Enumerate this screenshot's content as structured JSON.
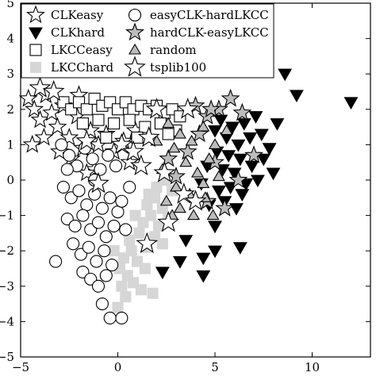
{
  "chart_data": {
    "type": "scatter",
    "title": "",
    "xlabel": "",
    "ylabel": "",
    "xlim": [
      -5,
      13
    ],
    "ylim": [
      -5,
      5
    ],
    "x_ticks": [
      -5,
      0,
      5,
      10
    ],
    "y_ticks": [
      -5,
      -4,
      -3,
      -2,
      -1,
      0,
      1,
      2,
      3,
      4,
      5
    ],
    "x_tick_labels": [
      "−5",
      "0",
      "5",
      "10"
    ],
    "y_tick_labels": [
      "−5",
      "−4",
      "−3",
      "−2",
      "−1",
      "0",
      "1",
      "2",
      "3",
      "4",
      "5"
    ],
    "grid": false,
    "legend_position": "top-left",
    "legend": [
      {
        "label": "CLKeasy",
        "marker": "star-open"
      },
      {
        "label": "CLKhard",
        "marker": "triangle-down-filled"
      },
      {
        "label": "LKCCeasy",
        "marker": "square-open"
      },
      {
        "label": "LKCChard",
        "marker": "square-gray"
      },
      {
        "label": "easyCLK-hardLKCC",
        "marker": "circle-open"
      },
      {
        "label": "hardCLK-easyLKCC",
        "marker": "star-gray"
      },
      {
        "label": "random",
        "marker": "triangle-up-gray"
      },
      {
        "label": "tsplib100",
        "marker": "star-open-large"
      }
    ],
    "series": [
      {
        "name": "CLKeasy",
        "marker": "star-open",
        "stroke": "#000000",
        "fill": "#ffffff",
        "points": [
          [
            -4.6,
            2.3
          ],
          [
            -4.3,
            2.0
          ],
          [
            -4.0,
            1.7
          ],
          [
            -3.7,
            2.4
          ],
          [
            -3.4,
            1.9
          ],
          [
            -3.1,
            1.5
          ],
          [
            -2.8,
            2.1
          ],
          [
            -2.5,
            1.2
          ],
          [
            -2.1,
            1.8
          ],
          [
            -1.8,
            0.9
          ],
          [
            -1.4,
            1.4
          ],
          [
            -1.0,
            1.0
          ],
          [
            -0.6,
            1.3
          ],
          [
            -0.2,
            0.8
          ],
          [
            0.3,
            1.1
          ],
          [
            -3.8,
            1.2
          ],
          [
            -2.4,
            0.6
          ],
          [
            -1.2,
            0.3
          ],
          [
            0.6,
            0.5
          ],
          [
            -4.4,
            1.0
          ],
          [
            -3.0,
            0.8
          ],
          [
            -2.0,
            2.4
          ],
          [
            -1.6,
            0.2
          ],
          [
            0.9,
            1.4
          ]
        ]
      },
      {
        "name": "CLKhard",
        "marker": "triangle-down-filled",
        "stroke": "#000000",
        "fill": "#000000",
        "points": [
          [
            5.0,
            1.4
          ],
          [
            5.3,
            1.7
          ],
          [
            5.6,
            1.2
          ],
          [
            5.9,
            1.5
          ],
          [
            6.2,
            1.0
          ],
          [
            6.5,
            1.6
          ],
          [
            6.8,
            1.2
          ],
          [
            7.1,
            1.8
          ],
          [
            7.4,
            1.3
          ],
          [
            5.1,
            0.8
          ],
          [
            5.4,
            0.3
          ],
          [
            5.7,
            0.7
          ],
          [
            6.0,
            0.2
          ],
          [
            6.3,
            0.6
          ],
          [
            6.6,
            -0.1
          ],
          [
            6.9,
            0.4
          ],
          [
            7.2,
            0.0
          ],
          [
            7.5,
            0.6
          ],
          [
            5.2,
            -0.3
          ],
          [
            5.5,
            -0.6
          ],
          [
            5.8,
            -0.2
          ],
          [
            6.1,
            -0.8
          ],
          [
            6.4,
            -0.4
          ],
          [
            4.6,
            0.4
          ],
          [
            4.3,
            -0.1
          ],
          [
            4.7,
            -0.7
          ],
          [
            5.0,
            -1.3
          ],
          [
            8.6,
            3.0
          ],
          [
            12.0,
            2.2
          ],
          [
            9.2,
            2.4
          ],
          [
            8.2,
            1.6
          ],
          [
            7.8,
            0.9
          ],
          [
            8.0,
            0.2
          ],
          [
            6.3,
            -1.9
          ],
          [
            5.0,
            -2.0
          ],
          [
            4.4,
            -2.2
          ],
          [
            3.5,
            -1.7
          ],
          [
            3.2,
            -2.3
          ],
          [
            2.3,
            -2.6
          ],
          [
            4.4,
            -2.7
          ]
        ]
      },
      {
        "name": "LKCCeasy",
        "marker": "square-open",
        "stroke": "#000000",
        "fill": "#ffffff",
        "points": [
          [
            -2.8,
            2.2
          ],
          [
            -2.4,
            2.0
          ],
          [
            -2.0,
            2.2
          ],
          [
            -1.6,
            2.0
          ],
          [
            -1.2,
            2.3
          ],
          [
            -0.8,
            2.1
          ],
          [
            -0.4,
            2.2
          ],
          [
            0.0,
            2.0
          ],
          [
            0.4,
            2.2
          ],
          [
            0.8,
            2.0
          ],
          [
            1.2,
            2.1
          ],
          [
            1.6,
            2.0
          ],
          [
            2.0,
            2.1
          ],
          [
            2.4,
            1.9
          ],
          [
            2.8,
            2.0
          ],
          [
            3.2,
            1.8
          ],
          [
            -1.8,
            1.6
          ],
          [
            -1.0,
            1.7
          ],
          [
            -0.2,
            1.6
          ],
          [
            0.6,
            1.7
          ],
          [
            1.4,
            1.5
          ],
          [
            2.2,
            1.6
          ],
          [
            3.0,
            1.4
          ],
          [
            -0.6,
            1.2
          ],
          [
            1.0,
            1.2
          ],
          [
            2.6,
            1.3
          ]
        ]
      },
      {
        "name": "LKCChard",
        "marker": "square-gray",
        "stroke": "#d6d6d6",
        "fill": "#d6d6d6",
        "points": [
          [
            0.0,
            -3.6
          ],
          [
            0.2,
            -3.0
          ],
          [
            0.4,
            -3.3
          ],
          [
            0.1,
            -2.5
          ],
          [
            0.5,
            -2.7
          ],
          [
            0.8,
            -2.9
          ],
          [
            1.2,
            -3.1
          ],
          [
            0.3,
            -2.2
          ],
          [
            0.7,
            -2.0
          ],
          [
            1.0,
            -2.3
          ],
          [
            1.4,
            -2.5
          ],
          [
            1.8,
            -3.2
          ],
          [
            0.6,
            -1.7
          ],
          [
            1.1,
            -1.5
          ],
          [
            1.5,
            -1.9
          ],
          [
            1.9,
            -1.6
          ],
          [
            2.3,
            -1.8
          ],
          [
            1.3,
            -1.2
          ],
          [
            1.7,
            -1.0
          ],
          [
            2.1,
            -1.3
          ],
          [
            1.5,
            -0.7
          ],
          [
            1.9,
            -0.5
          ],
          [
            2.3,
            -0.8
          ],
          [
            2.0,
            -0.2
          ],
          [
            2.4,
            0.0
          ],
          [
            2.8,
            -0.3
          ],
          [
            -0.2,
            -2.0
          ],
          [
            0.9,
            -1.0
          ],
          [
            1.6,
            -0.4
          ],
          [
            2.6,
            -1.1
          ]
        ]
      },
      {
        "name": "easyCLK-hardLKCC",
        "marker": "circle-open",
        "stroke": "#000000",
        "fill": "#ffffff",
        "points": [
          [
            -2.9,
            1.0
          ],
          [
            -2.5,
            0.7
          ],
          [
            -2.1,
            0.4
          ],
          [
            -1.7,
            0.9
          ],
          [
            -1.3,
            0.6
          ],
          [
            -0.9,
            0.3
          ],
          [
            -0.5,
            0.7
          ],
          [
            -0.1,
            0.4
          ],
          [
            -2.8,
            -0.2
          ],
          [
            -2.4,
            -0.5
          ],
          [
            -2.0,
            -0.3
          ],
          [
            -1.6,
            -0.7
          ],
          [
            -1.2,
            -0.4
          ],
          [
            -0.8,
            -0.8
          ],
          [
            -0.4,
            -0.5
          ],
          [
            0.0,
            -0.9
          ],
          [
            -2.6,
            -1.1
          ],
          [
            -2.2,
            -1.3
          ],
          [
            -1.8,
            -1.0
          ],
          [
            -1.4,
            -1.4
          ],
          [
            -1.0,
            -1.2
          ],
          [
            -0.6,
            -1.6
          ],
          [
            -0.2,
            -1.3
          ],
          [
            -2.3,
            -1.8
          ],
          [
            -1.9,
            -2.1
          ],
          [
            -1.5,
            -1.9
          ],
          [
            -1.1,
            -2.3
          ],
          [
            -0.7,
            -2.0
          ],
          [
            -0.3,
            -2.4
          ],
          [
            -1.8,
            -2.6
          ],
          [
            -1.4,
            -2.8
          ],
          [
            -1.0,
            -3.0
          ],
          [
            -0.6,
            -2.7
          ],
          [
            -3.2,
            -2.3
          ],
          [
            -0.8,
            -3.5
          ],
          [
            -0.4,
            -3.9
          ],
          [
            0.2,
            -3.9
          ],
          [
            0.4,
            -1.4
          ],
          [
            0.6,
            -0.2
          ],
          [
            -1.2,
            0.0
          ],
          [
            -2.6,
            0.3
          ],
          [
            0.2,
            -0.6
          ]
        ]
      },
      {
        "name": "hardCLK-easyLKCC",
        "marker": "star-gray",
        "stroke": "#000000",
        "fill": "#bdbdbd",
        "points": [
          [
            4.0,
            2.1
          ],
          [
            4.6,
            1.8
          ],
          [
            5.2,
            2.0
          ],
          [
            5.8,
            2.3
          ],
          [
            6.4,
            1.9
          ],
          [
            7.0,
            0.7
          ],
          [
            6.2,
            0.0
          ],
          [
            5.0,
            0.5
          ],
          [
            4.2,
            1.3
          ],
          [
            3.6,
            0.8
          ],
          [
            3.0,
            0.1
          ],
          [
            4.6,
            -0.6
          ],
          [
            5.5,
            -0.8
          ],
          [
            2.6,
            0.6
          ],
          [
            4.8,
            2.0
          ]
        ]
      },
      {
        "name": "random",
        "marker": "triangle-up-gray",
        "stroke": "#000000",
        "fill": "#bdbdbd",
        "points": [
          [
            2.6,
            1.6
          ],
          [
            3.2,
            1.3
          ],
          [
            3.8,
            1.1
          ],
          [
            4.4,
            1.5
          ],
          [
            5.0,
            1.0
          ],
          [
            2.9,
            0.9
          ],
          [
            3.5,
            0.5
          ],
          [
            4.1,
            0.2
          ],
          [
            4.7,
            0.6
          ],
          [
            2.3,
            0.3
          ],
          [
            3.0,
            -0.2
          ],
          [
            3.7,
            -0.4
          ],
          [
            4.4,
            -0.1
          ],
          [
            5.2,
            0.1
          ],
          [
            2.5,
            -0.6
          ],
          [
            3.2,
            -0.8
          ],
          [
            3.9,
            -1.0
          ],
          [
            4.5,
            -0.5
          ],
          [
            2.0,
            1.1
          ],
          [
            5.6,
            1.4
          ],
          [
            2.8,
            -1.0
          ],
          [
            4.9,
            -1.0
          ]
        ]
      },
      {
        "name": "tsplib100",
        "marker": "star-open-large",
        "stroke": "#000000",
        "fill": "#ffffff",
        "points": [
          [
            -4.0,
            2.6
          ],
          [
            -3.3,
            2.5
          ],
          [
            -1.6,
            1.1
          ],
          [
            0.2,
            1.0
          ],
          [
            1.6,
            1.2
          ],
          [
            2.0,
            2.0
          ],
          [
            3.6,
            2.0
          ],
          [
            0.8,
            0.8
          ],
          [
            -1.0,
            -0.1
          ],
          [
            2.4,
            0.2
          ],
          [
            3.4,
            -0.4
          ],
          [
            1.2,
            0.4
          ],
          [
            4.0,
            -0.6
          ],
          [
            2.6,
            -1.2
          ],
          [
            1.5,
            -1.8
          ]
        ]
      }
    ]
  }
}
